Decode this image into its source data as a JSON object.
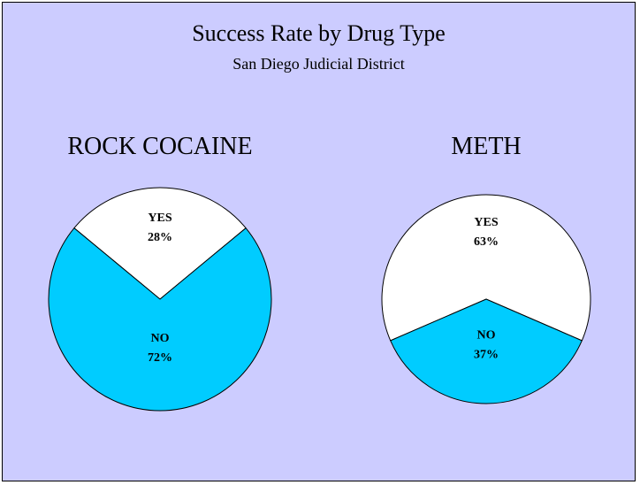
{
  "title": "Success Rate by Drug Type",
  "subtitle": "San Diego Judicial District",
  "colors": {
    "background": "#ccccff",
    "yes": "#ffffff",
    "no": "#00ccff"
  },
  "chart_data": [
    {
      "type": "pie",
      "title": "ROCK COCAINE",
      "slices": [
        {
          "label": "YES",
          "value": 28,
          "display": "28%",
          "color": "#ffffff"
        },
        {
          "label": "NO",
          "value": 72,
          "display": "72%",
          "color": "#00ccff"
        }
      ]
    },
    {
      "type": "pie",
      "title": "METH",
      "slices": [
        {
          "label": "YES",
          "value": 63,
          "display": "63%",
          "color": "#ffffff"
        },
        {
          "label": "NO",
          "value": 37,
          "display": "37%",
          "color": "#00ccff"
        }
      ]
    }
  ]
}
